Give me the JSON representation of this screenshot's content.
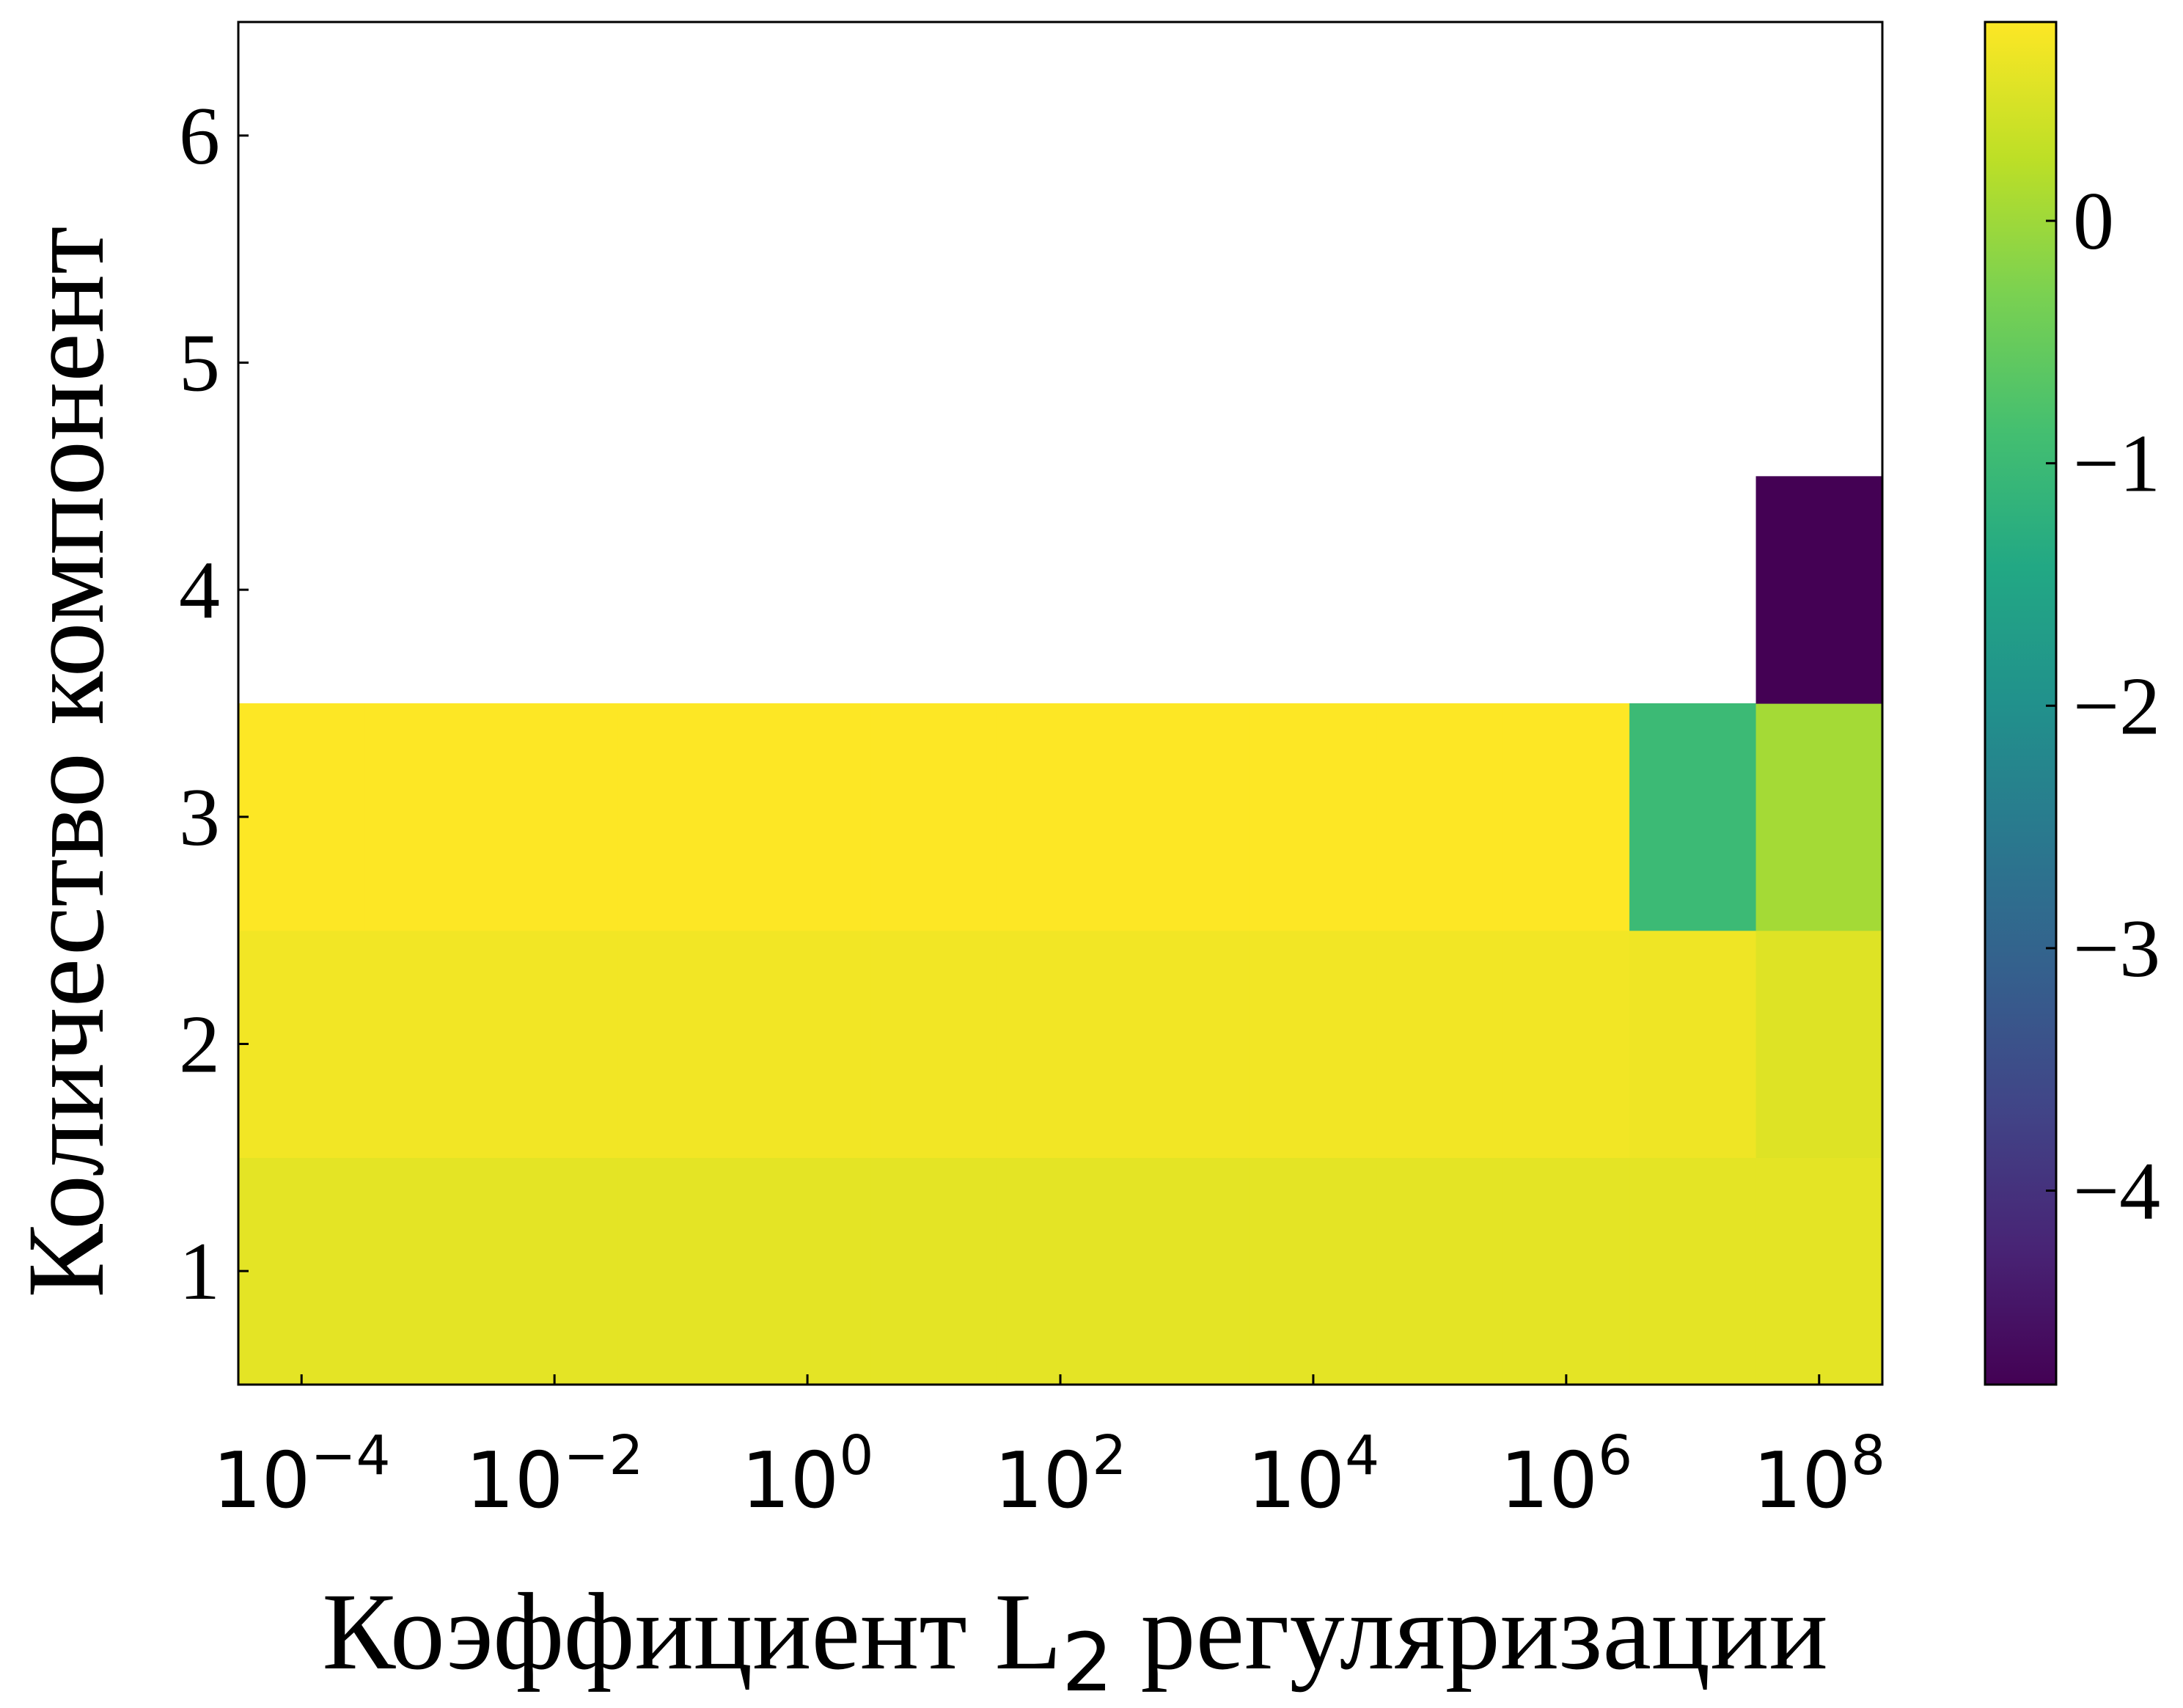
{
  "chart_data": {
    "type": "heatmap",
    "xlabel": "Коэффициент L",
    "xlabel_subscript": "2",
    "xlabel_rest": " регуляризации",
    "ylabel": "Количество компонент",
    "x_scale": "log",
    "x_values": [
      0.0001,
      0.001,
      0.01,
      0.1,
      1,
      10,
      100,
      1000,
      10000,
      100000,
      1000000,
      10000000,
      100000000
    ],
    "x_ticks": [
      {
        "value": 0.0001,
        "base": "10",
        "exp": "−4"
      },
      {
        "value": 0.01,
        "base": "10",
        "exp": "−2"
      },
      {
        "value": 1,
        "base": "10",
        "exp": "0"
      },
      {
        "value": 100,
        "base": "10",
        "exp": "2"
      },
      {
        "value": 10000,
        "base": "10",
        "exp": "4"
      },
      {
        "value": 1000000,
        "base": "10",
        "exp": "6"
      },
      {
        "value": 100000000,
        "base": "10",
        "exp": "8"
      }
    ],
    "y_ticks": [
      "1",
      "2",
      "3",
      "4",
      "5",
      "6"
    ],
    "ylim": [
      0.5,
      6.5
    ],
    "rows": [
      {
        "components": 1,
        "values": [
          0.6,
          0.6,
          0.6,
          0.6,
          0.6,
          0.6,
          0.6,
          0.6,
          0.6,
          0.6,
          0.6,
          0.6,
          0.6
        ]
      },
      {
        "components": 2,
        "values": [
          0.72,
          0.72,
          0.72,
          0.72,
          0.72,
          0.72,
          0.72,
          0.72,
          0.72,
          0.72,
          0.72,
          0.7,
          0.55
        ]
      },
      {
        "components": 3,
        "values": [
          0.82,
          0.82,
          0.82,
          0.82,
          0.82,
          0.82,
          0.82,
          0.82,
          0.82,
          0.82,
          0.82,
          -1.0,
          0.05
        ]
      },
      {
        "components": 4,
        "values": [
          null,
          null,
          null,
          null,
          null,
          null,
          null,
          null,
          null,
          null,
          null,
          null,
          -4.8
        ]
      }
    ],
    "colorbar": {
      "colormap": "viridis",
      "vmin": -4.8,
      "vmax": 0.82,
      "ticks": [
        {
          "value": 0,
          "label": "0"
        },
        {
          "value": -1,
          "label": "−1"
        },
        {
          "value": -2,
          "label": "−2"
        },
        {
          "value": -3,
          "label": "−3"
        },
        {
          "value": -4,
          "label": "−4"
        }
      ]
    },
    "grid": false
  }
}
